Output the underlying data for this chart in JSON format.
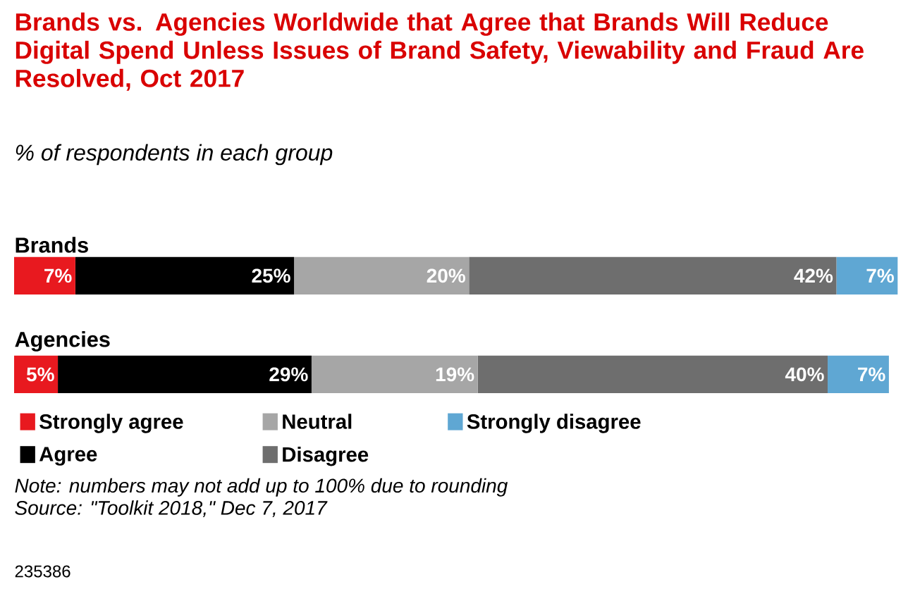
{
  "chart_data": {
    "type": "bar",
    "orientation": "horizontal",
    "stacked": true,
    "title": "Brands vs. Agencies Worldwide that Agree that Brands Will Reduce Digital Spend Unless Issues of Brand Safety, Viewability and Fraud Are Resolved, Oct 2017",
    "subtitle": "% of respondents in each group",
    "categories": [
      "Brands",
      "Agencies"
    ],
    "series": [
      {
        "name": "Strongly agree",
        "color": "#e8191f",
        "values": [
          7,
          5
        ],
        "value_labels": [
          "7%",
          "5%"
        ]
      },
      {
        "name": "Agree",
        "color": "#000000",
        "values": [
          25,
          29
        ],
        "value_labels": [
          "25%",
          "29%"
        ]
      },
      {
        "name": "Neutral",
        "color": "#a6a6a6",
        "values": [
          20,
          19
        ],
        "value_labels": [
          "20%",
          "19%"
        ]
      },
      {
        "name": "Disagree",
        "color": "#6e6e6e",
        "values": [
          42,
          40
        ],
        "value_labels": [
          "42%",
          "40%"
        ]
      },
      {
        "name": "Strongly disagree",
        "color": "#5fa7d3",
        "values": [
          7,
          7
        ],
        "value_labels": [
          "7%",
          "7%"
        ]
      }
    ],
    "legend": "bottom",
    "annotations": [
      "Note: numbers may not add up to 100% due to rounding",
      "Source: \"Toolkit 2018,\" Dec 7, 2017",
      "235386"
    ]
  }
}
